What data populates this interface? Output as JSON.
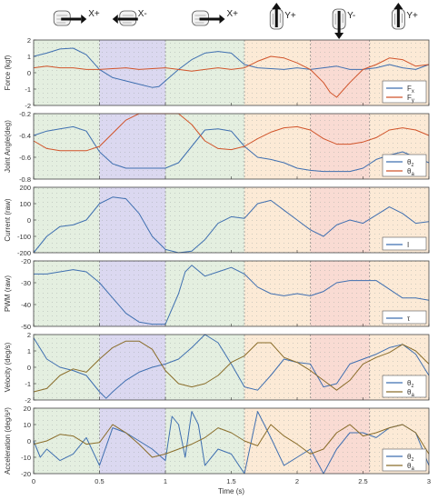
{
  "colors": {
    "blue": "#3f6fb0",
    "orange": "#d1542a",
    "olive": "#8a6d2a",
    "green_band": "#dbe9d5",
    "purple_band": "#cfcbeb",
    "orange_band": "#fbe3c8",
    "pink_band": "#f7cfc4"
  },
  "phases": [
    {
      "label": "X+",
      "direction": "right",
      "from": 0,
      "to": 0.5,
      "band": "green_band"
    },
    {
      "label": "X-",
      "direction": "left",
      "from": 0.5,
      "to": 1.0,
      "band": "purple_band"
    },
    {
      "label": "X+",
      "direction": "right",
      "from": 1.0,
      "to": 1.6,
      "band": "green_band"
    },
    {
      "label": "Y+",
      "direction": "up",
      "from": 1.6,
      "to": 2.1,
      "band": "orange_band"
    },
    {
      "label": "Y-",
      "direction": "down",
      "from": 2.1,
      "to": 2.55,
      "band": "pink_band"
    },
    {
      "label": "Y+",
      "direction": "up",
      "from": 2.55,
      "to": 3.0,
      "band": "orange_band"
    }
  ],
  "chart_data": [
    {
      "type": "line",
      "ylabel": "Force (kgf)",
      "ylim": [
        -2,
        2
      ],
      "yticks": [
        "2",
        "1",
        "0",
        "-1",
        "-2"
      ],
      "tickvals": [
        2,
        1,
        0,
        -1,
        -2
      ],
      "legend": [
        "F_x",
        "F_y"
      ],
      "series": [
        {
          "name": "F_x",
          "color": "blue",
          "x": [
            0,
            0.1,
            0.2,
            0.3,
            0.4,
            0.5,
            0.6,
            0.7,
            0.8,
            0.9,
            0.95,
            1.0,
            1.1,
            1.2,
            1.3,
            1.4,
            1.5,
            1.6,
            1.7,
            1.8,
            1.9,
            2.0,
            2.1,
            2.2,
            2.3,
            2.4,
            2.5,
            2.6,
            2.7,
            2.8,
            2.9,
            3.0
          ],
          "y": [
            1.0,
            1.2,
            1.45,
            1.5,
            1.1,
            0.2,
            -0.3,
            -0.5,
            -0.7,
            -0.9,
            -0.85,
            -0.5,
            0.2,
            0.8,
            1.2,
            1.3,
            1.2,
            0.5,
            0.3,
            0.25,
            0.2,
            0.3,
            0.2,
            0.3,
            0.4,
            0.2,
            0.2,
            0.3,
            0.5,
            0.3,
            0.2,
            0.5
          ]
        },
        {
          "name": "F_y",
          "color": "orange",
          "x": [
            0,
            0.1,
            0.2,
            0.3,
            0.4,
            0.5,
            0.6,
            0.7,
            0.8,
            0.9,
            1.0,
            1.1,
            1.2,
            1.3,
            1.4,
            1.5,
            1.6,
            1.7,
            1.8,
            1.9,
            2.0,
            2.1,
            2.2,
            2.25,
            2.3,
            2.4,
            2.5,
            2.6,
            2.7,
            2.8,
            2.9,
            3.0
          ],
          "y": [
            0.3,
            0.4,
            0.3,
            0.3,
            0.2,
            0.2,
            0.25,
            0.3,
            0.2,
            0.25,
            0.3,
            0.2,
            0.1,
            0.2,
            0.3,
            0.2,
            0.3,
            0.7,
            1.0,
            0.9,
            0.6,
            0.2,
            -0.6,
            -1.2,
            -1.5,
            -0.6,
            0.2,
            0.5,
            0.9,
            0.8,
            0.4,
            0.5
          ]
        }
      ]
    },
    {
      "type": "line",
      "ylabel": "Joint Angle(deg)",
      "ylim": [
        -0.8,
        -0.2
      ],
      "yticks": [
        "-0.2",
        "-0.4",
        "-0.6",
        "-0.8"
      ],
      "tickvals": [
        -0.2,
        -0.4,
        -0.6,
        -0.8
      ],
      "legend": [
        "θ_z",
        "θ_a"
      ],
      "series": [
        {
          "name": "θ_z",
          "color": "blue",
          "x": [
            0,
            0.1,
            0.2,
            0.3,
            0.4,
            0.5,
            0.6,
            0.7,
            0.8,
            0.9,
            1.0,
            1.1,
            1.2,
            1.3,
            1.4,
            1.5,
            1.6,
            1.7,
            1.8,
            1.9,
            2.0,
            2.1,
            2.2,
            2.3,
            2.4,
            2.5,
            2.6,
            2.7,
            2.8,
            2.9,
            3.0
          ],
          "y": [
            -0.4,
            -0.36,
            -0.34,
            -0.32,
            -0.36,
            -0.55,
            -0.66,
            -0.7,
            -0.7,
            -0.7,
            -0.7,
            -0.65,
            -0.5,
            -0.35,
            -0.34,
            -0.36,
            -0.5,
            -0.6,
            -0.62,
            -0.65,
            -0.7,
            -0.72,
            -0.73,
            -0.73,
            -0.73,
            -0.7,
            -0.62,
            -0.58,
            -0.55,
            -0.6,
            -0.65
          ]
        },
        {
          "name": "θ_a",
          "color": "orange",
          "x": [
            0,
            0.1,
            0.2,
            0.3,
            0.4,
            0.5,
            0.6,
            0.7,
            0.8,
            0.9,
            1.0,
            1.1,
            1.2,
            1.3,
            1.4,
            1.5,
            1.6,
            1.7,
            1.8,
            1.9,
            2.0,
            2.1,
            2.2,
            2.3,
            2.4,
            2.5,
            2.6,
            2.7,
            2.8,
            2.9,
            3.0
          ],
          "y": [
            -0.45,
            -0.52,
            -0.54,
            -0.54,
            -0.54,
            -0.5,
            -0.38,
            -0.26,
            -0.18,
            -0.13,
            -0.13,
            -0.18,
            -0.3,
            -0.45,
            -0.52,
            -0.53,
            -0.5,
            -0.43,
            -0.37,
            -0.33,
            -0.32,
            -0.35,
            -0.43,
            -0.48,
            -0.48,
            -0.46,
            -0.42,
            -0.35,
            -0.33,
            -0.35,
            -0.4
          ]
        }
      ]
    },
    {
      "type": "line",
      "ylabel": "Current (raw)",
      "ylim": [
        -200,
        200
      ],
      "yticks": [
        "200",
        "100",
        "0",
        "-100",
        "-200"
      ],
      "tickvals": [
        200,
        100,
        0,
        -100,
        -200
      ],
      "legend": [
        "I"
      ],
      "series": [
        {
          "name": "I",
          "color": "blue",
          "x": [
            0,
            0.1,
            0.2,
            0.3,
            0.4,
            0.5,
            0.6,
            0.7,
            0.8,
            0.9,
            1.0,
            1.1,
            1.2,
            1.3,
            1.4,
            1.5,
            1.6,
            1.7,
            1.8,
            1.9,
            2.0,
            2.1,
            2.2,
            2.3,
            2.4,
            2.5,
            2.6,
            2.7,
            2.8,
            2.9,
            3.0
          ],
          "y": [
            -200,
            -100,
            -40,
            -30,
            0,
            100,
            140,
            130,
            40,
            -100,
            -180,
            -200,
            -190,
            -120,
            -20,
            20,
            10,
            100,
            120,
            60,
            0,
            -60,
            -100,
            -30,
            0,
            -20,
            30,
            80,
            40,
            -20,
            -10
          ]
        }
      ]
    },
    {
      "type": "line",
      "ylabel": "PWM (raw)",
      "ylim": [
        -50,
        -20
      ],
      "yticks": [
        "-20",
        "-30",
        "-40",
        "-50"
      ],
      "tickvals": [
        -20,
        -30,
        -40,
        -50
      ],
      "legend": [
        "τ"
      ],
      "series": [
        {
          "name": "τ",
          "color": "blue",
          "x": [
            0,
            0.1,
            0.2,
            0.3,
            0.4,
            0.5,
            0.6,
            0.7,
            0.8,
            0.9,
            1.0,
            1.1,
            1.15,
            1.2,
            1.3,
            1.4,
            1.5,
            1.6,
            1.7,
            1.8,
            1.9,
            2.0,
            2.1,
            2.2,
            2.3,
            2.4,
            2.5,
            2.6,
            2.7,
            2.8,
            2.9,
            3.0
          ],
          "y": [
            -26,
            -26,
            -25,
            -24,
            -25,
            -30,
            -37,
            -44,
            -48,
            -49,
            -49,
            -35,
            -25,
            -22,
            -27,
            -25,
            -23,
            -26,
            -32,
            -35,
            -36,
            -35,
            -36,
            -34,
            -30,
            -29,
            -29,
            -29,
            -33,
            -37,
            -37,
            -38
          ]
        }
      ]
    },
    {
      "type": "line",
      "ylabel": "Velocity (deg/s)",
      "ylim": [
        -2,
        2
      ],
      "yticks": [
        "2",
        "1",
        "0",
        "-1",
        "-2"
      ],
      "tickvals": [
        2,
        1,
        0,
        -1,
        -2
      ],
      "legend": [
        "θ_z",
        "θ_a"
      ],
      "series": [
        {
          "name": "θ_z",
          "color": "blue",
          "x": [
            0,
            0.1,
            0.2,
            0.3,
            0.4,
            0.5,
            0.55,
            0.6,
            0.7,
            0.8,
            0.9,
            1.0,
            1.1,
            1.2,
            1.3,
            1.4,
            1.5,
            1.6,
            1.7,
            1.8,
            1.9,
            2.0,
            2.1,
            2.2,
            2.3,
            2.4,
            2.5,
            2.6,
            2.7,
            2.8,
            2.9,
            3.0
          ],
          "y": [
            1.8,
            0.5,
            0,
            -0.2,
            -0.5,
            -1.5,
            -1.9,
            -1.5,
            -0.8,
            -0.3,
            0,
            0.2,
            0.5,
            1.2,
            2.1,
            1.5,
            0.2,
            -1.2,
            -1.4,
            -0.5,
            0.5,
            0.3,
            0.2,
            -1.2,
            -1.0,
            0.2,
            0.5,
            0.8,
            1.2,
            1.4,
            0.8,
            -0.5
          ]
        },
        {
          "name": "θ_a",
          "color": "olive",
          "x": [
            0,
            0.1,
            0.2,
            0.3,
            0.4,
            0.5,
            0.6,
            0.7,
            0.8,
            0.9,
            1.0,
            1.1,
            1.2,
            1.3,
            1.4,
            1.5,
            1.6,
            1.7,
            1.8,
            1.9,
            2.0,
            2.1,
            2.2,
            2.3,
            2.4,
            2.5,
            2.6,
            2.7,
            2.8,
            2.9,
            3.0
          ],
          "y": [
            -1.5,
            -1.3,
            -0.5,
            -0.1,
            -0.3,
            0.5,
            1.2,
            1.6,
            1.6,
            1.1,
            -0.2,
            -1.0,
            -1.2,
            -1.0,
            -0.5,
            0.3,
            0.7,
            1.5,
            1.5,
            0.6,
            0.3,
            -0.2,
            -0.8,
            -1.4,
            -0.8,
            0.2,
            0.6,
            0.9,
            1.4,
            1.0,
            0.2
          ]
        }
      ]
    },
    {
      "type": "line",
      "ylabel": "Acceleration (deg/s²)",
      "ylim": [
        -20,
        20
      ],
      "yticks": [
        "20",
        "10",
        "0",
        "-10",
        "-20"
      ],
      "tickvals": [
        20,
        10,
        0,
        -10,
        -20
      ],
      "legend": [
        "θ_z",
        "θ_a"
      ],
      "series": [
        {
          "name": "θ_z",
          "color": "blue",
          "x": [
            0,
            0.05,
            0.1,
            0.2,
            0.3,
            0.4,
            0.5,
            0.6,
            0.7,
            0.8,
            0.9,
            1.0,
            1.05,
            1.1,
            1.15,
            1.2,
            1.25,
            1.3,
            1.4,
            1.5,
            1.6,
            1.7,
            1.75,
            1.8,
            1.9,
            2.0,
            2.1,
            2.2,
            2.3,
            2.4,
            2.5,
            2.6,
            2.7,
            2.8,
            2.9,
            3.0
          ],
          "y": [
            0,
            -10,
            -5,
            -12,
            -8,
            2,
            -15,
            8,
            5,
            0,
            -5,
            -12,
            15,
            10,
            -10,
            18,
            10,
            -15,
            -5,
            -8,
            -20,
            18,
            10,
            2,
            -15,
            -10,
            -5,
            -20,
            -5,
            5,
            5,
            2,
            8,
            10,
            5,
            -15
          ]
        },
        {
          "name": "θ_a",
          "color": "olive",
          "x": [
            0,
            0.1,
            0.2,
            0.3,
            0.4,
            0.5,
            0.6,
            0.7,
            0.8,
            0.9,
            1.0,
            1.1,
            1.2,
            1.3,
            1.4,
            1.5,
            1.6,
            1.7,
            1.8,
            1.9,
            2.0,
            2.1,
            2.2,
            2.3,
            2.4,
            2.5,
            2.6,
            2.7,
            2.8,
            2.9,
            3.0
          ],
          "y": [
            -2,
            0,
            4,
            3,
            -2,
            -1,
            10,
            5,
            -2,
            -10,
            -8,
            -5,
            -2,
            2,
            8,
            5,
            0,
            -3,
            10,
            3,
            -2,
            -8,
            -5,
            5,
            10,
            3,
            5,
            8,
            10,
            5,
            -8
          ]
        }
      ]
    }
  ],
  "xaxis": {
    "label": "Time (s)",
    "ticks": [
      "0",
      "0.5",
      "1",
      "1.5",
      "2",
      "2.5",
      "3"
    ],
    "tickvals": [
      0,
      0.5,
      1,
      1.5,
      2,
      2.5,
      3
    ],
    "xlim": [
      0,
      3
    ]
  }
}
